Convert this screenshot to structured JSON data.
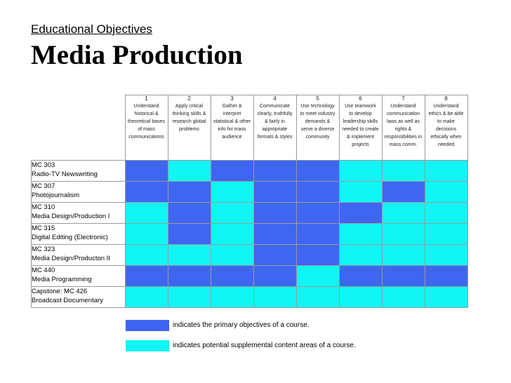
{
  "header": {
    "subtitle": "Educational Objectives",
    "title": "Media Production"
  },
  "objectives": [
    {
      "number": "1",
      "lines": [
        "Understand",
        "historical &",
        "theoretical bases",
        "of mass",
        "communications"
      ]
    },
    {
      "number": "2",
      "lines": [
        "Apply critical",
        "thinking skills &",
        "research global",
        "problems"
      ]
    },
    {
      "number": "3",
      "lines": [
        "Gather &",
        "interpret",
        "statistical & other",
        "info for mass",
        "audience"
      ]
    },
    {
      "number": "4",
      "lines": [
        "Communicate",
        "clearly, truthfully",
        "& fairly in",
        "appropriate",
        "formats & styles"
      ]
    },
    {
      "number": "5",
      "lines": [
        "Use technology",
        "to meet industry",
        "demands &",
        "serve a diverse",
        "community"
      ]
    },
    {
      "number": "6",
      "lines": [
        "Use teamwork",
        "to develop",
        "leadership skills",
        "needed to create",
        "& implement",
        "projects"
      ]
    },
    {
      "number": "7",
      "lines": [
        "Understand",
        "communication",
        "laws as well as",
        "rights &",
        "responsibilities in",
        "mass comm."
      ]
    },
    {
      "number": "8",
      "lines": [
        "Understand",
        "ethics & be able",
        "to make",
        "decisions",
        "ethically when",
        "needed"
      ]
    }
  ],
  "courses": [
    {
      "code": "MC 303",
      "name": "Radio-TV Newswriting",
      "cells": [
        "primary",
        "supplemental",
        "primary",
        "primary",
        "primary",
        "supplemental",
        "supplemental",
        "supplemental"
      ]
    },
    {
      "code": "MC 307",
      "name": "Photojournalism",
      "cells": [
        "primary",
        "primary",
        "supplemental",
        "primary",
        "primary",
        "supplemental",
        "primary",
        "supplemental"
      ]
    },
    {
      "code": "MC 310",
      "name": "Media Design/Production I",
      "cells": [
        "supplemental",
        "primary",
        "supplemental",
        "primary",
        "primary",
        "primary",
        "supplemental",
        "supplemental"
      ]
    },
    {
      "code": "MC 315",
      "name": "Digital Editing (Electronic)",
      "cells": [
        "supplemental",
        "primary",
        "supplemental",
        "primary",
        "primary",
        "supplemental",
        "supplemental",
        "supplemental"
      ]
    },
    {
      "code": "MC 323",
      "name": "Media Design/Producton II",
      "cells": [
        "supplemental",
        "supplemental",
        "supplemental",
        "primary",
        "primary",
        "supplemental",
        "supplemental",
        "supplemental"
      ]
    },
    {
      "code": "MC 440",
      "name": "Media Programming",
      "cells": [
        "primary",
        "primary",
        "primary",
        "primary",
        "supplemental",
        "primary",
        "primary",
        "primary"
      ]
    },
    {
      "code": "Capstone: MC 426",
      "name": "Broadcast Documentary",
      "cells": [
        "supplemental",
        "supplemental",
        "supplemental",
        "supplemental",
        "supplemental",
        "supplemental",
        "supplemental",
        "supplemental"
      ]
    }
  ],
  "legend": {
    "primary": {
      "label": "indicates the primary objectives of a course.",
      "color": "#3f66f0"
    },
    "supplemental": {
      "label": "indicates potential supplemental content areas of a course.",
      "color": "#12f5f5"
    }
  }
}
